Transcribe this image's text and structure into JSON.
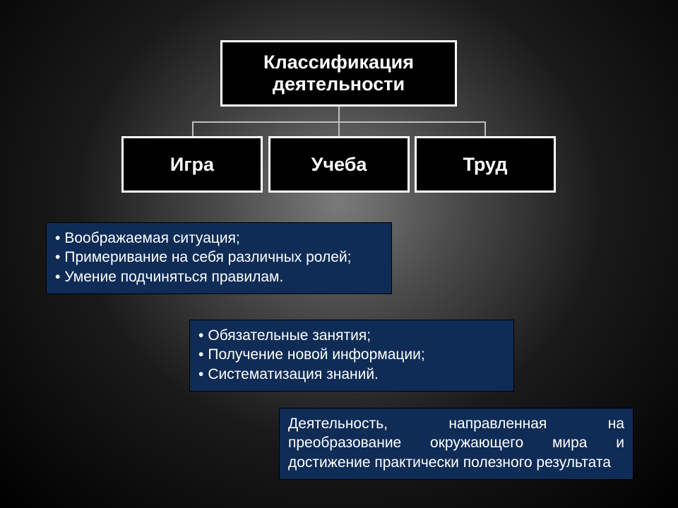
{
  "diagram": {
    "type": "tree",
    "root": {
      "label": "Классификация деятельности",
      "bg_color": "#000000",
      "border_color": "#ffffff",
      "text_color": "#ffffff",
      "font_family": "Arial",
      "font_size_pt": 20,
      "font_weight": "bold"
    },
    "children": [
      {
        "label": "Игра",
        "bg_color": "#000000",
        "border_color": "#ffffff",
        "text_color": "#ffffff"
      },
      {
        "label": "Учеба",
        "bg_color": "#000000",
        "border_color": "#ffffff",
        "text_color": "#ffffff"
      },
      {
        "label": "Труд",
        "bg_color": "#000000",
        "border_color": "#ffffff",
        "text_color": "#ffffff"
      }
    ],
    "connector_color": "#bfbfbf"
  },
  "info_boxes": {
    "bg_color": "#0f2c56",
    "text_color": "#ffffff",
    "font_family": "Comic Sans MS",
    "font_size_pt": 16,
    "igra": {
      "items": [
        "Воображаемая ситуация;",
        "Примеривание на себя различных ролей;",
        "Умение подчиняться правилам."
      ]
    },
    "ucheba": {
      "items": [
        "Обязательные занятия;",
        "Получение новой информации;",
        "Систематизация знаний."
      ]
    },
    "trud": {
      "text": "Деятельность, направленная на преобразование окружающего мира и достижение практически полезного результата"
    }
  },
  "background": {
    "gradient_center": "#7a7a7a",
    "gradient_edge": "#000000"
  }
}
